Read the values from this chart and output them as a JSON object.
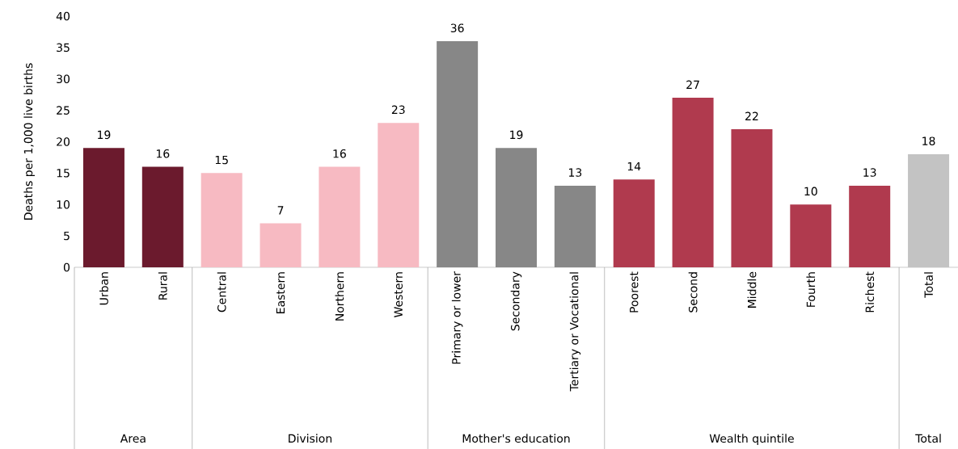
{
  "chart_data": {
    "type": "bar",
    "ylabel": "Deaths per 1,000 live births",
    "categories": [
      "Urban",
      "Rural",
      "Central",
      "Eastern",
      "Northern",
      "Western",
      "Primary or lower",
      "Secondary",
      "Tertiary or Vocational",
      "Poorest",
      "Second",
      "Middle",
      "Fourth",
      "Richest",
      "Total"
    ],
    "values": [
      19,
      16,
      15,
      7,
      16,
      23,
      36,
      19,
      13,
      14,
      27,
      22,
      10,
      13,
      18
    ],
    "colors": [
      "#6b1a2d",
      "#6b1a2d",
      "#f7bac2",
      "#f7bac2",
      "#f7bac2",
      "#f7bac2",
      "#878787",
      "#878787",
      "#878787",
      "#b03a4e",
      "#b03a4e",
      "#b03a4e",
      "#b03a4e",
      "#b03a4e",
      "#c3c3c3"
    ],
    "ylim": [
      0,
      40
    ],
    "yticks": [
      0,
      5,
      10,
      15,
      20,
      25,
      30,
      35,
      40
    ],
    "data_labels": true,
    "annotations": [
      "Area",
      "Division",
      "Mother's education",
      "Wealth quintile",
      "Total"
    ]
  }
}
